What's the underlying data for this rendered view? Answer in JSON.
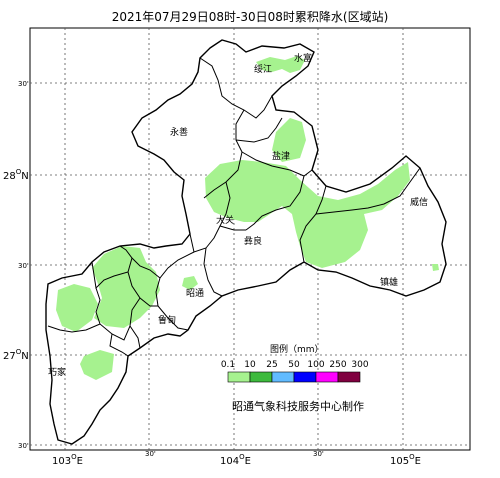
{
  "title": "2021年07月29日08时-30日08时累积降水(区域站)",
  "map": {
    "lon_ticks": [
      {
        "label": "103",
        "deg": "O",
        "hem": "E"
      },
      {
        "label": "30'"
      },
      {
        "label": "104",
        "deg": "O",
        "hem": "E"
      },
      {
        "label": "30'"
      },
      {
        "label": "105",
        "deg": "O",
        "hem": "E"
      }
    ],
    "lat_ticks": [
      {
        "label": "30'"
      },
      {
        "label": "28",
        "deg": "O",
        "hem": "N"
      },
      {
        "label": "30'"
      },
      {
        "label": "27",
        "deg": "O",
        "hem": "N"
      },
      {
        "label": "30'"
      }
    ],
    "places": [
      {
        "name": "绥江"
      },
      {
        "name": "水富"
      },
      {
        "name": "永善"
      },
      {
        "name": "盐津"
      },
      {
        "name": "大关"
      },
      {
        "name": "彝良"
      },
      {
        "name": "威信"
      },
      {
        "name": "昭通"
      },
      {
        "name": "镇雄"
      },
      {
        "name": "鲁甸"
      },
      {
        "name": "巧家"
      }
    ]
  },
  "legend": {
    "title": "图例（mm）",
    "labels": [
      "0.1",
      "10",
      "25",
      "50",
      "100",
      "250",
      "300"
    ],
    "colors": [
      "#a6f28f",
      "#3dba3d",
      "#61bbff",
      "#0000ff",
      "#ff00ff",
      "#800040"
    ]
  },
  "footer": "昭通气象科技服务中心制作"
}
